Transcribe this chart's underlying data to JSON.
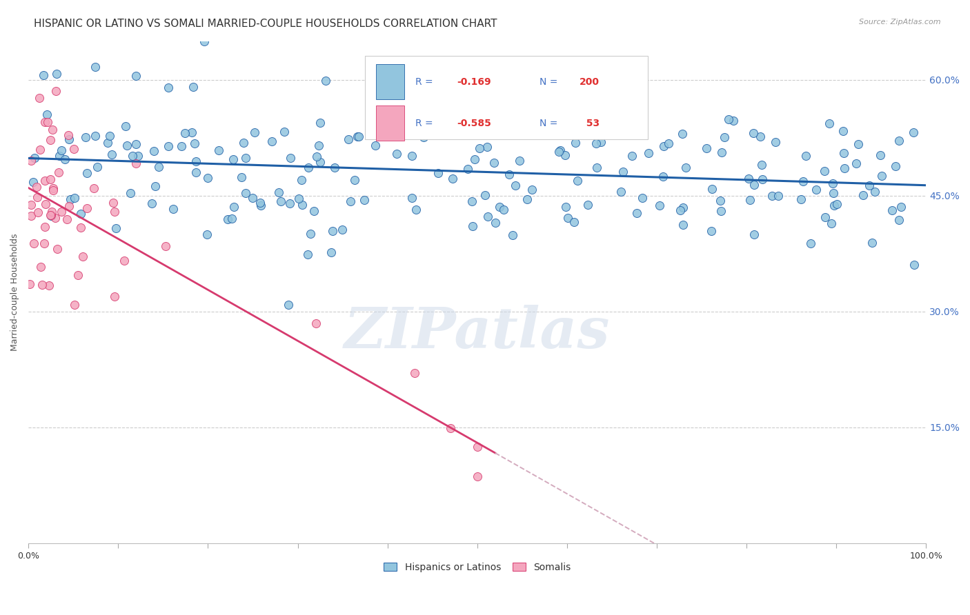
{
  "title": "HISPANIC OR LATINO VS SOMALI MARRIED-COUPLE HOUSEHOLDS CORRELATION CHART",
  "source": "Source: ZipAtlas.com",
  "ylabel": "Married-couple Households",
  "watermark": "ZIPatlas",
  "legend_blue_r": "-0.169",
  "legend_blue_n": "200",
  "legend_pink_r": "-0.585",
  "legend_pink_n": "53",
  "legend_labels": [
    "Hispanics or Latinos",
    "Somalis"
  ],
  "blue_color": "#92c5de",
  "pink_color": "#f4a6be",
  "trendline_blue": "#1f5fa6",
  "trendline_pink": "#d63a6e",
  "trendline_extrapolated": "#d4abbe",
  "background_color": "#ffffff",
  "grid_color": "#cccccc",
  "title_fontsize": 11,
  "axis_label_fontsize": 9,
  "tick_fontsize": 9,
  "xlim": [
    0.0,
    1.0
  ],
  "ylim": [
    0.0,
    0.65
  ],
  "blue_seed": 42,
  "pink_seed": 7
}
